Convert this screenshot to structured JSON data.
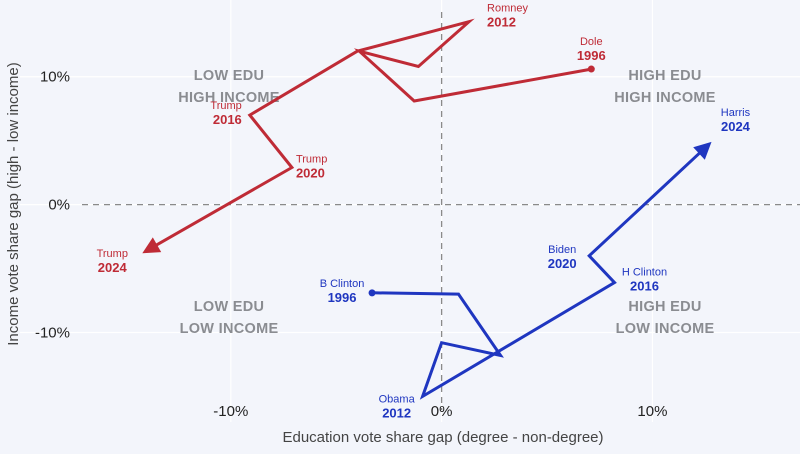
{
  "chart_data": {
    "type": "line",
    "title": "",
    "xlabel": "Education vote share gap (degree - non-degree)",
    "ylabel": "Income vote share gap (high - low income)",
    "xlim": [
      -20,
      17
    ],
    "ylim": [
      -17,
      16
    ],
    "x_ticks": [
      -10,
      0,
      10
    ],
    "y_ticks": [
      10,
      0,
      -10
    ],
    "x_tick_labels": [
      "-10%",
      "0%",
      "10%"
    ],
    "y_tick_labels": [
      "10%",
      "0%",
      "-10%"
    ],
    "grid": true,
    "quadrant_labels": {
      "top_left": [
        "LOW EDU",
        "HIGH INCOME"
      ],
      "top_right": [
        "HIGH EDU",
        "HIGH INCOME"
      ],
      "bottom_left": [
        "LOW EDU",
        "LOW INCOME"
      ],
      "bottom_right": [
        "HIGH EDU",
        "LOW INCOME"
      ]
    },
    "series": [
      {
        "color": "#bf2b36",
        "path": [
          {
            "x": 7.1,
            "y": 10.6
          },
          {
            "x": -1.3,
            "y": 8.1
          },
          {
            "x": -3.9,
            "y": 12.0
          },
          {
            "x": -1.1,
            "y": 10.8
          },
          {
            "x": 1.3,
            "y": 14.3
          },
          {
            "x": -4.0,
            "y": 12.0
          },
          {
            "x": -9.1,
            "y": 7.0
          },
          {
            "x": -7.1,
            "y": 2.9
          },
          {
            "x": -14.2,
            "y": -3.8
          }
        ],
        "labels": [
          {
            "name": "Dole",
            "year": "1996",
            "x": 7.1,
            "y": 10.6,
            "anchor": "middle",
            "dx": 0,
            "dy": -24
          },
          {
            "name": "Romney",
            "year": "2012",
            "x": 1.3,
            "y": 14.3,
            "anchor": "start",
            "dx": 18,
            "dy": -10
          },
          {
            "name": "Trump",
            "year": "2016",
            "x": -9.1,
            "y": 7.0,
            "anchor": "end",
            "dx": -8,
            "dy": -6
          },
          {
            "name": "Trump",
            "year": "2020",
            "x": -7.1,
            "y": 2.9,
            "anchor": "start",
            "dx": 4,
            "dy": -5
          },
          {
            "name": "Trump",
            "year": "2024",
            "x": -14.2,
            "y": -3.8,
            "anchor": "middle",
            "dx": -30,
            "dy": 4
          }
        ]
      },
      {
        "color": "#1f36c0",
        "path": [
          {
            "x": -3.3,
            "y": -6.9
          },
          {
            "x": 0.8,
            "y": -7.0
          },
          {
            "x": 2.8,
            "y": -11.8
          },
          {
            "x": 0.0,
            "y": -10.8
          },
          {
            "x": -0.9,
            "y": -15.0
          },
          {
            "x": 8.2,
            "y": -6.1
          },
          {
            "x": 7.0,
            "y": -4.0
          },
          {
            "x": 12.8,
            "y": 4.9
          }
        ],
        "labels": [
          {
            "name": "B Clinton",
            "year": "1996",
            "x": -3.3,
            "y": -6.9,
            "anchor": "middle",
            "dx": -30,
            "dy": -6
          },
          {
            "name": "Obama",
            "year": "2012",
            "x": -0.9,
            "y": -15.0,
            "anchor": "middle",
            "dx": -26,
            "dy": 6
          },
          {
            "name": "H Clinton",
            "year": "2016",
            "x": 8.2,
            "y": -6.1,
            "anchor": "middle",
            "dx": 30,
            "dy": -7
          },
          {
            "name": "Biden",
            "year": "2020",
            "x": 7.0,
            "y": -4.0,
            "anchor": "middle",
            "dx": -27,
            "dy": -3
          },
          {
            "name": "Harris",
            "year": "2024",
            "x": 12.8,
            "y": 4.9,
            "anchor": "middle",
            "dx": 24,
            "dy": -26
          }
        ]
      }
    ]
  }
}
